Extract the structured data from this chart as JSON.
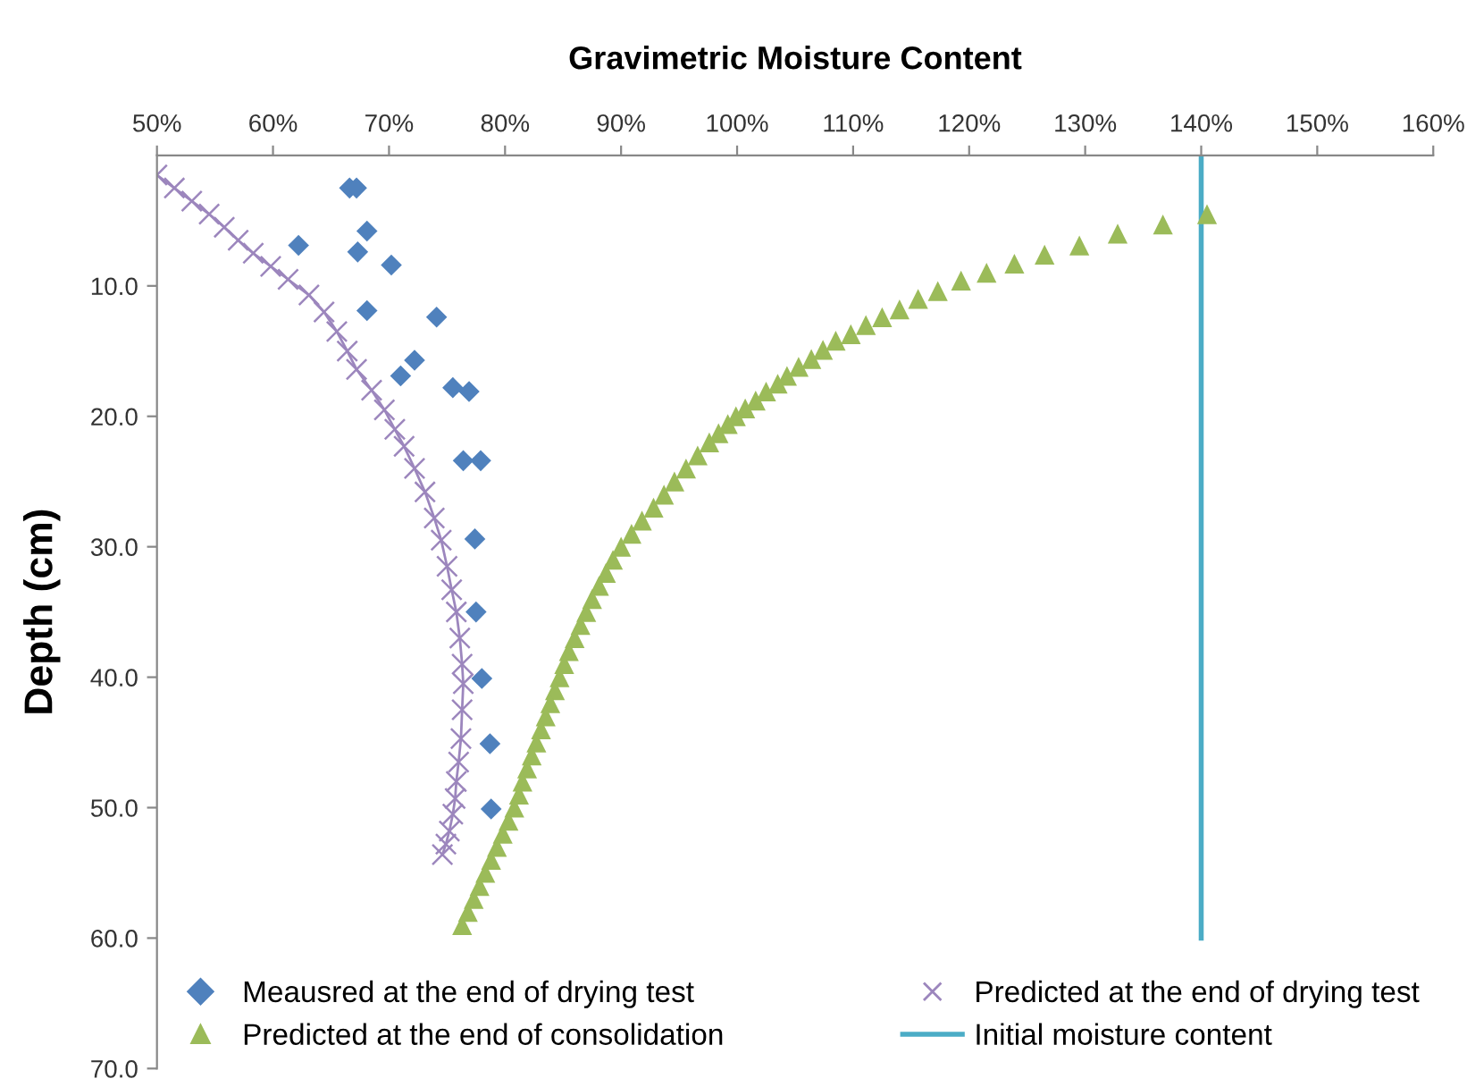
{
  "chart_data": {
    "type": "scatter",
    "xlabel": "Gravimetric Moisture Content",
    "ylabel": "Depth (cm)",
    "xlim": [
      50,
      160
    ],
    "ylim": [
      70,
      0
    ],
    "xticks": [
      {
        "value": 50,
        "label": "50%"
      },
      {
        "value": 60,
        "label": "60%"
      },
      {
        "value": 70,
        "label": "70%"
      },
      {
        "value": 80,
        "label": "80%"
      },
      {
        "value": 90,
        "label": "90%"
      },
      {
        "value": 100,
        "label": "100%"
      },
      {
        "value": 110,
        "label": "110%"
      },
      {
        "value": 120,
        "label": "120%"
      },
      {
        "value": 130,
        "label": "130%"
      },
      {
        "value": 140,
        "label": "140%"
      },
      {
        "value": 150,
        "label": "150%"
      },
      {
        "value": 160,
        "label": "160%"
      }
    ],
    "yticks": [
      {
        "value": 10,
        "label": "10.0"
      },
      {
        "value": 20,
        "label": "20.0"
      },
      {
        "value": 30,
        "label": "30.0"
      },
      {
        "value": 40,
        "label": "40.0"
      },
      {
        "value": 50,
        "label": "50.0"
      },
      {
        "value": 60,
        "label": "60.0"
      },
      {
        "value": 70,
        "label": "70.0"
      }
    ],
    "grid": false,
    "legend": "bottom",
    "series": [
      {
        "name": "Meausred at the end of drying test",
        "marker": "diamond",
        "color": "#4f81bd",
        "x": [
          66.6,
          67.2,
          68.1,
          62.2,
          67.3,
          70.2,
          68.1,
          74.1,
          72.2,
          71.0,
          75.5,
          76.9,
          76.4,
          77.9,
          77.4,
          77.5,
          78.0,
          78.7,
          78.8
        ],
        "values": [
          2.5,
          2.5,
          5.8,
          6.9,
          7.4,
          8.4,
          11.9,
          12.4,
          15.7,
          16.9,
          17.8,
          18.1,
          23.4,
          23.4,
          29.4,
          35.0,
          40.1,
          45.1,
          50.1
        ]
      },
      {
        "name": "Predicted at the end of drying test",
        "type": "line",
        "marker": "cross",
        "line_style": "solid",
        "color": "#9c86bd",
        "x": [
          50.0,
          51.5,
          53.0,
          54.5,
          55.8,
          57.0,
          58.3,
          59.8,
          61.3,
          63.1,
          64.4,
          65.5,
          66.4,
          67.2,
          68.5,
          69.6,
          70.5,
          71.3,
          72.2,
          73.1,
          73.9,
          74.5,
          75.0,
          75.4,
          75.8,
          76.1,
          76.3,
          76.4,
          76.3,
          76.2,
          76.0,
          75.8,
          75.7,
          75.5,
          75.2,
          74.9,
          74.6
        ],
        "values": [
          1.5,
          2.5,
          3.5,
          4.5,
          5.5,
          6.5,
          7.5,
          8.5,
          9.5,
          10.7,
          12.0,
          13.5,
          15.0,
          16.4,
          18.0,
          19.5,
          21.0,
          22.3,
          24.0,
          25.8,
          27.8,
          29.5,
          31.5,
          33.3,
          35.0,
          37.0,
          39.0,
          40.5,
          42.5,
          44.7,
          46.5,
          48.0,
          49.3,
          50.5,
          51.8,
          52.8,
          53.6
        ]
      },
      {
        "name": "Predicted at the end of consolidation",
        "marker": "triangle",
        "color": "#9bbb59",
        "x": [
          140.5,
          136.7,
          132.8,
          129.5,
          126.5,
          123.9,
          121.5,
          119.3,
          117.3,
          115.6,
          114.0,
          112.5,
          111.1,
          109.8,
          108.5,
          107.4,
          106.4,
          105.3,
          104.3,
          103.5,
          102.5,
          101.6,
          100.7,
          99.9,
          99.2,
          98.4,
          97.6,
          96.6,
          95.6,
          94.6,
          93.7,
          92.8,
          91.8,
          90.9,
          90.0,
          89.3,
          88.7,
          88.1,
          87.5,
          87.0,
          86.5,
          86.0,
          85.5,
          85.1,
          84.7,
          84.3,
          83.9,
          83.5,
          83.1,
          82.7,
          82.3,
          81.9,
          81.5,
          81.2,
          80.8,
          80.3,
          79.8,
          79.3,
          78.8,
          78.3,
          77.8,
          77.3,
          76.8,
          76.3
        ],
        "values": [
          4.5,
          5.3,
          6.0,
          6.9,
          7.6,
          8.3,
          9.0,
          9.6,
          10.4,
          11.0,
          11.8,
          12.4,
          13.0,
          13.7,
          14.2,
          14.9,
          15.6,
          16.2,
          16.9,
          17.5,
          18.1,
          18.8,
          19.4,
          20.0,
          20.6,
          21.3,
          22.0,
          23.0,
          24.0,
          25.0,
          26.0,
          27.0,
          28.0,
          29.0,
          30.0,
          31.0,
          32.0,
          33.0,
          34.0,
          35.0,
          36.0,
          37.0,
          38.0,
          39.0,
          40.0,
          41.0,
          42.0,
          43.0,
          44.0,
          45.0,
          46.0,
          47.0,
          48.0,
          49.0,
          50.0,
          51.0,
          52.0,
          53.0,
          54.0,
          55.0,
          56.0,
          57.0,
          58.0,
          59.0
        ]
      },
      {
        "name": "Initial moisture content",
        "type": "line",
        "marker": "none",
        "line_style": "solid",
        "color": "#4bacc6",
        "x": [
          140,
          140
        ],
        "values": [
          0,
          60
        ]
      }
    ]
  }
}
